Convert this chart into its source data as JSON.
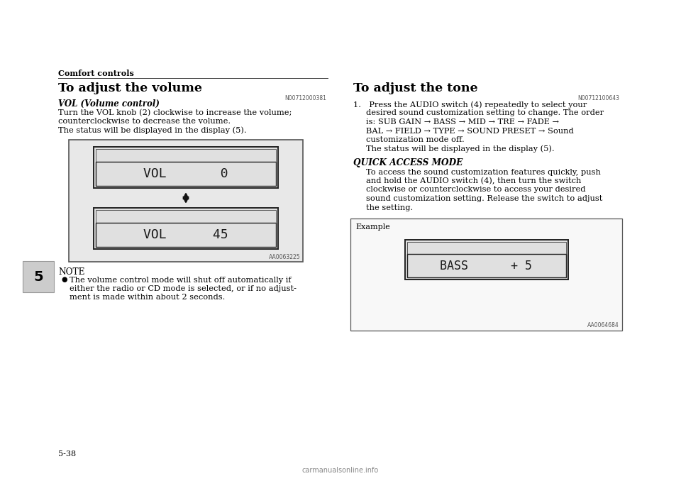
{
  "bg_color": "#ffffff",
  "page_width": 9.6,
  "page_height": 6.78,
  "header_label": "Comfort controls",
  "left_section_title": "To adjust the volume",
  "right_section_title": "To adjust the tone",
  "left_ref": "N00712000381",
  "right_ref": "N00712100643",
  "vol_control_bold": "VOL (Volume control)",
  "vol_body_line1": "Turn the VOL knob (2) clockwise to increase the volume;",
  "vol_body_line2": "counterclockwise to decrease the volume.",
  "vol_body_line3": "The status will be displayed in the display (5).",
  "note_title": "NOTE",
  "note_bullet_line1": "The volume control mode will shut off automatically if",
  "note_bullet_line2": "either the radio or CD mode is selected, or if no adjust-",
  "note_bullet_line3": "ment is made within about 2 seconds.",
  "display1_text_line1": "VOL",
  "display1_text_line2": "0",
  "display2_text_line1": "VOL",
  "display2_text_line2": "45",
  "img_ref_left": "AA0063225",
  "tone_list_item": "1. Press the AUDIO switch (4) repeatedly to select your",
  "tone_line2": "desired sound customization setting to change. The order",
  "tone_line3": "is: SUB GAIN → BASS → MID → TRE → FADE →",
  "tone_line4": "BAL → FIELD → TYPE → SOUND PRESET → Sound",
  "tone_line5": "customization mode off.",
  "tone_line6": "The status will be displayed in the display (5).",
  "quick_access_bold": "QUICK ACCESS MODE",
  "qa_line1": "To access the sound customization features quickly, push",
  "qa_line2": "and hold the AUDIO switch (4), then turn the switch",
  "qa_line3": "clockwise or counterclockwise to access your desired",
  "qa_line4": "sound customization setting. Release the switch to adjust",
  "qa_line5": "the setting.",
  "example_label": "Example",
  "example_display_text": "BASS      + 5",
  "img_ref_right": "AA0064684",
  "page_number": "5-38",
  "chapter_tab": "5",
  "tab_color": "#cccccc",
  "watermark": "carmanualsonline.info"
}
